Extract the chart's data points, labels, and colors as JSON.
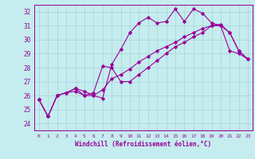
{
  "background_color": "#c5ecee",
  "grid_color": "#a8d8dc",
  "line_color": "#990099",
  "xlabel": "Windchill (Refroidissement éolien,°C)",
  "xlim": [
    -0.5,
    23.5
  ],
  "ylim": [
    23.5,
    32.5
  ],
  "yticks": [
    24,
    25,
    26,
    27,
    28,
    29,
    30,
    31,
    32
  ],
  "line1_x": [
    0,
    1,
    2,
    3,
    4,
    5,
    6,
    7,
    8,
    9,
    10,
    11,
    12,
    13,
    14,
    15,
    16,
    17,
    18,
    19,
    20,
    21,
    22,
    23
  ],
  "line1_y": [
    25.7,
    24.5,
    26.0,
    26.2,
    26.5,
    26.3,
    26.0,
    25.8,
    28.2,
    29.3,
    30.5,
    31.2,
    31.6,
    31.2,
    31.3,
    32.2,
    31.3,
    32.2,
    31.9,
    31.2,
    31.0,
    29.2,
    29.0,
    28.6
  ],
  "line2_x": [
    0,
    1,
    2,
    3,
    4,
    5,
    6,
    7,
    8,
    9,
    10,
    11,
    12,
    13,
    14,
    15,
    16,
    17,
    18,
    19,
    20,
    21,
    22,
    23
  ],
  "line2_y": [
    25.7,
    24.5,
    26.0,
    26.2,
    26.3,
    26.0,
    26.2,
    28.1,
    28.0,
    27.0,
    27.0,
    27.5,
    28.0,
    28.5,
    29.0,
    29.5,
    29.8,
    30.2,
    30.5,
    31.0,
    31.0,
    30.5,
    29.2,
    28.6
  ],
  "line3_x": [
    0,
    1,
    2,
    3,
    4,
    5,
    6,
    7,
    8,
    9,
    10,
    11,
    12,
    13,
    14,
    15,
    16,
    17,
    18,
    19,
    20,
    21,
    22,
    23
  ],
  "line3_y": [
    25.7,
    24.5,
    26.0,
    26.2,
    26.5,
    26.0,
    26.0,
    26.4,
    27.2,
    27.5,
    27.9,
    28.4,
    28.8,
    29.2,
    29.5,
    29.8,
    30.2,
    30.5,
    30.8,
    31.0,
    31.1,
    30.5,
    29.2,
    28.6
  ]
}
